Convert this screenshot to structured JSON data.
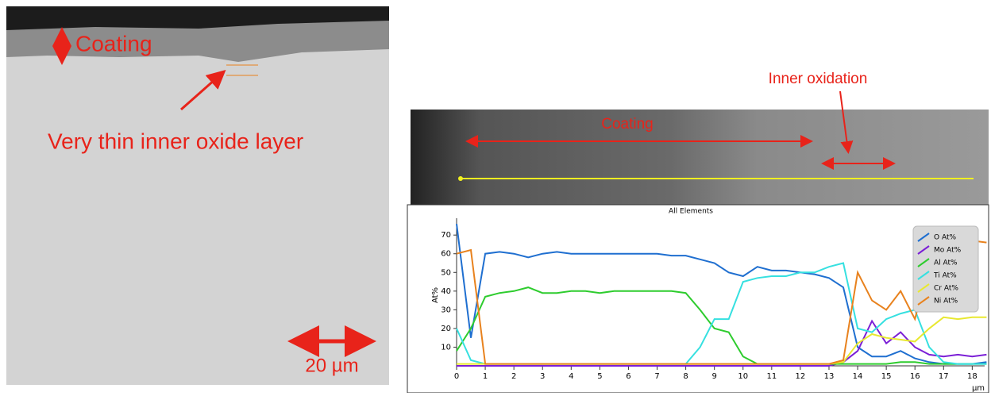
{
  "figure": {
    "left_labels": [
      "Coating",
      "Very thin inner oxide layer",
      "20 µm"
    ],
    "right_labels": [
      "Inner oxidation",
      "Coating"
    ]
  },
  "chart_data": {
    "type": "line",
    "title": "All Elements",
    "x_label": "µm",
    "y_label": "At%",
    "x": [
      0,
      0.5,
      1,
      1.5,
      2,
      2.5,
      3,
      3.5,
      4,
      4.5,
      5,
      5.5,
      6,
      6.5,
      7,
      7.5,
      8,
      8.5,
      9,
      9.5,
      10,
      10.5,
      11,
      11.5,
      12,
      12.5,
      13,
      13.5,
      14,
      14.5,
      15,
      15.5,
      16,
      16.5,
      17,
      17.5,
      18,
      18.5
    ],
    "series": [
      {
        "name": "O At%",
        "color": "#1f6fd0",
        "values": [
          76,
          15,
          60,
          61,
          60,
          58,
          60,
          61,
          60,
          60,
          60,
          60,
          60,
          60,
          60,
          59,
          59,
          57,
          55,
          50,
          48,
          53,
          51,
          51,
          50,
          49,
          47,
          42,
          10,
          5,
          5,
          8,
          4,
          2,
          1,
          1,
          1,
          2
        ]
      },
      {
        "name": "Mo At%",
        "color": "#7b1fd6",
        "values": [
          0,
          0,
          0,
          0,
          0,
          0,
          0,
          0,
          0,
          0,
          0,
          0,
          0,
          0,
          0,
          0,
          0,
          0,
          0,
          0,
          0,
          0,
          0,
          0,
          0,
          0,
          0,
          2,
          8,
          24,
          12,
          18,
          10,
          6,
          5,
          6,
          5,
          6
        ]
      },
      {
        "name": "Al At%",
        "color": "#2ecc2e",
        "values": [
          8,
          20,
          37,
          39,
          40,
          42,
          39,
          39,
          40,
          40,
          39,
          40,
          40,
          40,
          40,
          40,
          39,
          30,
          20,
          18,
          5,
          1,
          1,
          1,
          1,
          1,
          1,
          1,
          1,
          1,
          1,
          2,
          2,
          1,
          1,
          1,
          1,
          1
        ]
      },
      {
        "name": "Ti At%",
        "color": "#36e0e0",
        "values": [
          20,
          3,
          1,
          1,
          1,
          1,
          1,
          1,
          1,
          1,
          1,
          1,
          1,
          1,
          1,
          1,
          1,
          10,
          25,
          25,
          45,
          47,
          48,
          48,
          50,
          50,
          53,
          55,
          20,
          18,
          25,
          28,
          30,
          10,
          2,
          1,
          1,
          1
        ]
      },
      {
        "name": "Cr At%",
        "color": "#e8e830",
        "values": [
          1,
          1,
          1,
          1,
          1,
          1,
          1,
          1,
          1,
          1,
          1,
          1,
          1,
          1,
          1,
          1,
          1,
          1,
          1,
          1,
          1,
          1,
          1,
          1,
          1,
          1,
          1,
          2,
          12,
          17,
          15,
          14,
          13,
          20,
          26,
          25,
          26,
          26
        ]
      },
      {
        "name": "Ni At%",
        "color": "#e8821e",
        "values": [
          60,
          62,
          1,
          1,
          1,
          1,
          1,
          1,
          1,
          1,
          1,
          1,
          1,
          1,
          1,
          1,
          1,
          1,
          1,
          1,
          1,
          1,
          1,
          1,
          1,
          1,
          1,
          3,
          50,
          35,
          30,
          40,
          25,
          55,
          64,
          67,
          67,
          66
        ]
      }
    ],
    "xlim": [
      0,
      18.6
    ],
    "ylim": [
      0,
      79
    ],
    "xticks": [
      0,
      1,
      2,
      3,
      4,
      5,
      6,
      7,
      8,
      9,
      10,
      11,
      12,
      13,
      14,
      15,
      16,
      17,
      18
    ],
    "yticks": [
      10,
      20,
      30,
      40,
      50,
      60,
      70
    ],
    "legend": "top-right"
  }
}
